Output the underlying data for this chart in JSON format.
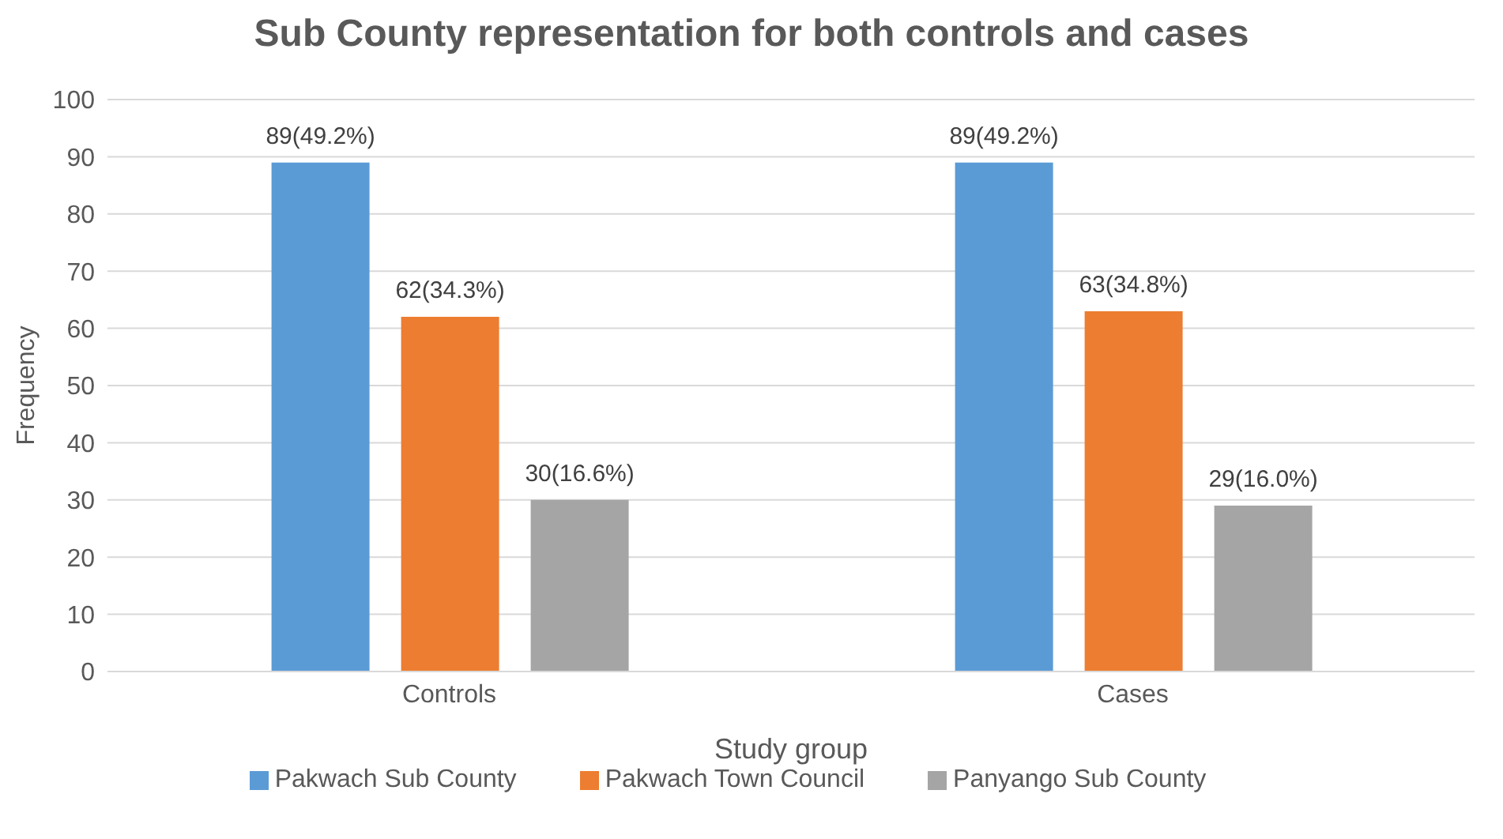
{
  "chart_data": {
    "type": "bar",
    "title": "Sub County representation for both controls and cases",
    "xlabel": "Study group",
    "ylabel": "Frequency",
    "categories": [
      "Controls",
      "Cases"
    ],
    "series": [
      {
        "name": "Pakwach Sub County",
        "color": "#5b9bd5",
        "values": [
          89,
          89
        ],
        "value_labels": [
          "89(49.2%)",
          "89(49.2%)"
        ]
      },
      {
        "name": "Pakwach Town Council",
        "color": "#ed7d31",
        "values": [
          62,
          63
        ],
        "value_labels": [
          "62(34.3%)",
          "63(34.8%)"
        ]
      },
      {
        "name": "Panyango Sub County",
        "color": "#a5a5a5",
        "values": [
          30,
          29
        ],
        "value_labels": [
          "30(16.6%)",
          "29(16.0%)"
        ]
      }
    ],
    "ylim": [
      0,
      100
    ],
    "yticks": [
      0,
      10,
      20,
      30,
      40,
      50,
      60,
      70,
      80,
      90,
      100
    ],
    "grid": "y",
    "legend": "bottom"
  }
}
